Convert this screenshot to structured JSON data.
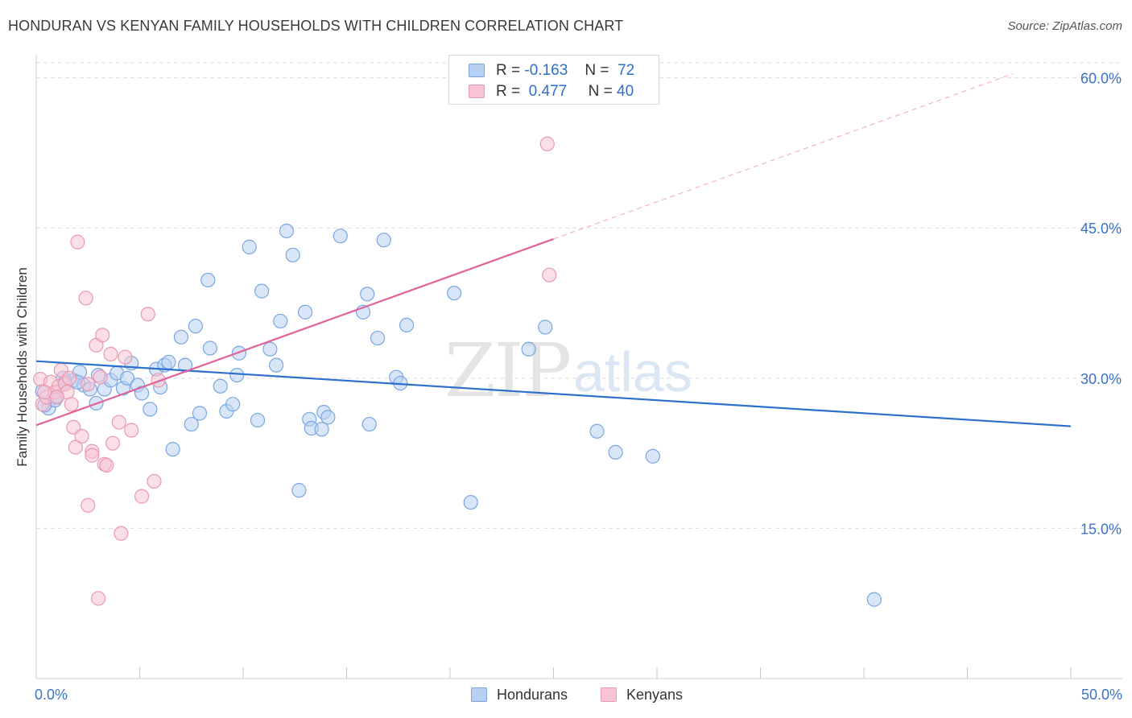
{
  "title": "HONDURAN VS KENYAN FAMILY HOUSEHOLDS WITH CHILDREN CORRELATION CHART",
  "source": "Source: ZipAtlas.com",
  "watermark": {
    "zip": "ZIP",
    "atlas": "atlas"
  },
  "legend_top": [
    {
      "r_label": "R =",
      "r_value": "-0.163",
      "n_label": "N =",
      "n_value": "72"
    },
    {
      "r_label": "R =",
      "r_value": "0.477",
      "n_label": "N =",
      "n_value": "40"
    }
  ],
  "legend_bottom": [
    "Hondurans",
    "Kenyans"
  ],
  "colors": {
    "hondurans_fill": "#b8d1f2",
    "hondurans_stroke": "#7aa6e0",
    "hondurans_line": "#2d6fcc",
    "kenyans_fill": "#f8c4d4",
    "kenyans_stroke": "#ea98b4",
    "kenyans_line": "#e0649a",
    "tick_label": "#3b72c6",
    "grid": "#dcdcdc"
  },
  "chart_data": {
    "type": "scatter",
    "title": "HONDURAN VS KENYAN FAMILY HOUSEHOLDS WITH CHILDREN CORRELATION CHART",
    "xlabel": "",
    "ylabel": "Family Households with Children",
    "xlim": [
      0,
      50
    ],
    "ylim": [
      0,
      61.5
    ],
    "x_tick_labels": [
      {
        "value": 0,
        "label": "0.0%"
      },
      {
        "value": 50,
        "label": "50.0%"
      }
    ],
    "y_ticks": [
      {
        "value": 15,
        "label": "15.0%"
      },
      {
        "value": 30,
        "label": "30.0%"
      },
      {
        "value": 45,
        "label": "45.0%"
      },
      {
        "value": 60,
        "label": "60.0%"
      }
    ],
    "x_minor_ticks": [
      0,
      5,
      10,
      15,
      20,
      25,
      30,
      35,
      40,
      45,
      50
    ],
    "series": [
      {
        "name": "Hondurans",
        "R": -0.163,
        "N": 72,
        "trend": {
          "x0": 0,
          "y0": 31.7,
          "x1": 50,
          "y1": 25.2
        },
        "points": [
          [
            0.3,
            28.7
          ],
          [
            0.6,
            27.0
          ],
          [
            0.9,
            27.8
          ],
          [
            1.0,
            28.2
          ],
          [
            1.4,
            29.6
          ],
          [
            1.8,
            29.8
          ],
          [
            2.1,
            30.6
          ],
          [
            2.3,
            29.3
          ],
          [
            2.6,
            28.9
          ],
          [
            2.9,
            27.5
          ],
          [
            3.0,
            30.3
          ],
          [
            3.3,
            28.9
          ],
          [
            3.6,
            29.8
          ],
          [
            3.9,
            30.5
          ],
          [
            4.2,
            29.0
          ],
          [
            4.4,
            30.0
          ],
          [
            4.6,
            31.5
          ],
          [
            4.9,
            29.3
          ],
          [
            5.1,
            28.5
          ],
          [
            5.5,
            26.9
          ],
          [
            5.8,
            30.9
          ],
          [
            6.0,
            29.1
          ],
          [
            6.2,
            31.3
          ],
          [
            6.4,
            31.6
          ],
          [
            6.6,
            22.9
          ],
          [
            7.0,
            34.1
          ],
          [
            7.2,
            31.3
          ],
          [
            7.5,
            25.4
          ],
          [
            7.7,
            35.2
          ],
          [
            7.9,
            26.5
          ],
          [
            8.3,
            39.8
          ],
          [
            8.4,
            33.0
          ],
          [
            8.9,
            29.2
          ],
          [
            9.2,
            26.7
          ],
          [
            9.5,
            27.4
          ],
          [
            9.7,
            30.3
          ],
          [
            9.8,
            32.5
          ],
          [
            10.3,
            43.1
          ],
          [
            10.7,
            25.8
          ],
          [
            10.9,
            38.7
          ],
          [
            11.3,
            32.9
          ],
          [
            11.6,
            31.3
          ],
          [
            11.8,
            35.7
          ],
          [
            12.1,
            44.7
          ],
          [
            12.4,
            42.3
          ],
          [
            12.7,
            18.8
          ],
          [
            13.0,
            36.6
          ],
          [
            13.2,
            25.9
          ],
          [
            13.3,
            25.0
          ],
          [
            13.8,
            24.9
          ],
          [
            13.9,
            26.6
          ],
          [
            14.1,
            26.1
          ],
          [
            14.7,
            44.2
          ],
          [
            15.8,
            36.6
          ],
          [
            16.0,
            38.4
          ],
          [
            16.1,
            25.4
          ],
          [
            16.5,
            34.0
          ],
          [
            16.8,
            43.8
          ],
          [
            17.4,
            30.1
          ],
          [
            17.6,
            29.5
          ],
          [
            17.9,
            35.3
          ],
          [
            20.2,
            38.5
          ],
          [
            21.0,
            17.6
          ],
          [
            23.8,
            32.9
          ],
          [
            24.6,
            35.1
          ],
          [
            27.1,
            24.7
          ],
          [
            28.0,
            22.6
          ],
          [
            29.8,
            22.2
          ],
          [
            40.5,
            7.9
          ],
          [
            0.4,
            27.3
          ],
          [
            1.3,
            30.0
          ],
          [
            2.0,
            29.6
          ]
        ]
      },
      {
        "name": "Kenyans",
        "R": 0.477,
        "N": 40,
        "trend": {
          "x0": 0,
          "y0": 25.3,
          "x1": 25,
          "y1": 43.9
        },
        "trend_dashed": {
          "x0": 25,
          "y0": 43.9,
          "x1": 47.2,
          "y1": 60.4
        },
        "points": [
          [
            0.2,
            29.9
          ],
          [
            0.3,
            27.4
          ],
          [
            0.5,
            28.1
          ],
          [
            0.7,
            29.6
          ],
          [
            0.9,
            28.6
          ],
          [
            1.1,
            29.2
          ],
          [
            1.2,
            30.8
          ],
          [
            1.4,
            29.4
          ],
          [
            1.5,
            28.6
          ],
          [
            1.6,
            30.0
          ],
          [
            1.7,
            27.4
          ],
          [
            1.8,
            25.1
          ],
          [
            1.9,
            23.1
          ],
          [
            2.0,
            43.6
          ],
          [
            2.2,
            24.2
          ],
          [
            2.4,
            38.0
          ],
          [
            2.5,
            17.3
          ],
          [
            2.7,
            22.7
          ],
          [
            2.7,
            22.3
          ],
          [
            2.9,
            33.3
          ],
          [
            3.0,
            8.0
          ],
          [
            3.1,
            30.1
          ],
          [
            3.2,
            34.3
          ],
          [
            3.3,
            21.4
          ],
          [
            3.4,
            21.3
          ],
          [
            3.6,
            32.4
          ],
          [
            3.7,
            23.5
          ],
          [
            4.0,
            25.6
          ],
          [
            4.1,
            14.5
          ],
          [
            4.3,
            32.1
          ],
          [
            4.6,
            24.8
          ],
          [
            5.1,
            18.2
          ],
          [
            5.4,
            36.4
          ],
          [
            5.7,
            19.7
          ],
          [
            5.9,
            29.8
          ],
          [
            24.8,
            40.3
          ],
          [
            24.7,
            53.4
          ],
          [
            0.4,
            28.6
          ],
          [
            1.0,
            28.1
          ],
          [
            2.5,
            29.4
          ]
        ]
      }
    ]
  }
}
